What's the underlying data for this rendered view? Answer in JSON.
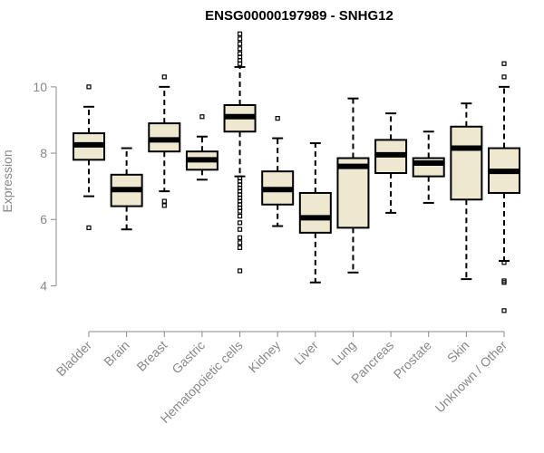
{
  "chart_data": {
    "type": "boxplot",
    "title": "ENSG00000197989 - SNHG12",
    "xlabel": "",
    "ylabel": "Expression",
    "ylim": [
      3.0,
      11.8
    ],
    "yticks": [
      4,
      6,
      8,
      10
    ],
    "box_color": "#EEE8D0",
    "axis_color": "#888888",
    "categories": [
      "Bladder",
      "Brain",
      "Breast",
      "Gastric",
      "Hematopoietic cells",
      "Kidney",
      "Liver",
      "Lung",
      "Pancreas",
      "Prostate",
      "Skin",
      "Unknown / Other"
    ],
    "boxes": [
      {
        "category": "Bladder",
        "whisker_low": 6.7,
        "q1": 7.8,
        "median": 8.25,
        "q3": 8.6,
        "whisker_high": 9.4,
        "outliers": [
          10.0,
          5.75
        ]
      },
      {
        "category": "Brain",
        "whisker_low": 5.7,
        "q1": 6.4,
        "median": 6.9,
        "q3": 7.35,
        "whisker_high": 8.15,
        "outliers": []
      },
      {
        "category": "Breast",
        "whisker_low": 6.85,
        "q1": 8.05,
        "median": 8.4,
        "q3": 8.9,
        "whisker_high": 10.0,
        "outliers": [
          10.3,
          6.55,
          6.42
        ]
      },
      {
        "category": "Gastric",
        "whisker_low": 7.2,
        "q1": 7.5,
        "median": 7.8,
        "q3": 8.05,
        "whisker_high": 8.5,
        "outliers": [
          9.1
        ]
      },
      {
        "category": "Hematopoietic cells",
        "whisker_low": 7.3,
        "q1": 8.65,
        "median": 9.1,
        "q3": 9.45,
        "whisker_high": 10.6,
        "outliers": [
          11.6,
          11.45,
          11.3,
          11.15,
          11.0,
          10.9,
          10.8,
          10.7,
          7.25,
          7.15,
          7.05,
          6.95,
          6.85,
          6.75,
          6.65,
          6.55,
          6.45,
          6.35,
          6.25,
          6.1,
          5.9,
          5.7,
          5.45,
          5.3,
          5.15,
          4.45
        ]
      },
      {
        "category": "Kidney",
        "whisker_low": 5.8,
        "q1": 6.45,
        "median": 6.9,
        "q3": 7.45,
        "whisker_high": 8.45,
        "outliers": [
          9.05
        ]
      },
      {
        "category": "Liver",
        "whisker_low": 4.1,
        "q1": 5.6,
        "median": 6.05,
        "q3": 6.8,
        "whisker_high": 8.3,
        "outliers": []
      },
      {
        "category": "Lung",
        "whisker_low": 4.4,
        "q1": 5.75,
        "median": 7.6,
        "q3": 7.85,
        "whisker_high": 9.65,
        "outliers": []
      },
      {
        "category": "Pancreas",
        "whisker_low": 6.2,
        "q1": 7.4,
        "median": 7.95,
        "q3": 8.4,
        "whisker_high": 9.2,
        "outliers": []
      },
      {
        "category": "Prostate",
        "whisker_low": 6.5,
        "q1": 7.3,
        "median": 7.7,
        "q3": 7.85,
        "whisker_high": 8.65,
        "outliers": []
      },
      {
        "category": "Skin",
        "whisker_low": 4.2,
        "q1": 6.6,
        "median": 8.15,
        "q3": 8.8,
        "whisker_high": 9.5,
        "outliers": []
      },
      {
        "category": "Unknown / Other",
        "whisker_low": 4.75,
        "q1": 6.8,
        "median": 7.45,
        "q3": 8.15,
        "whisker_high": 10.0,
        "outliers": [
          10.7,
          10.3,
          4.7,
          4.15,
          4.1,
          3.25
        ]
      }
    ]
  }
}
